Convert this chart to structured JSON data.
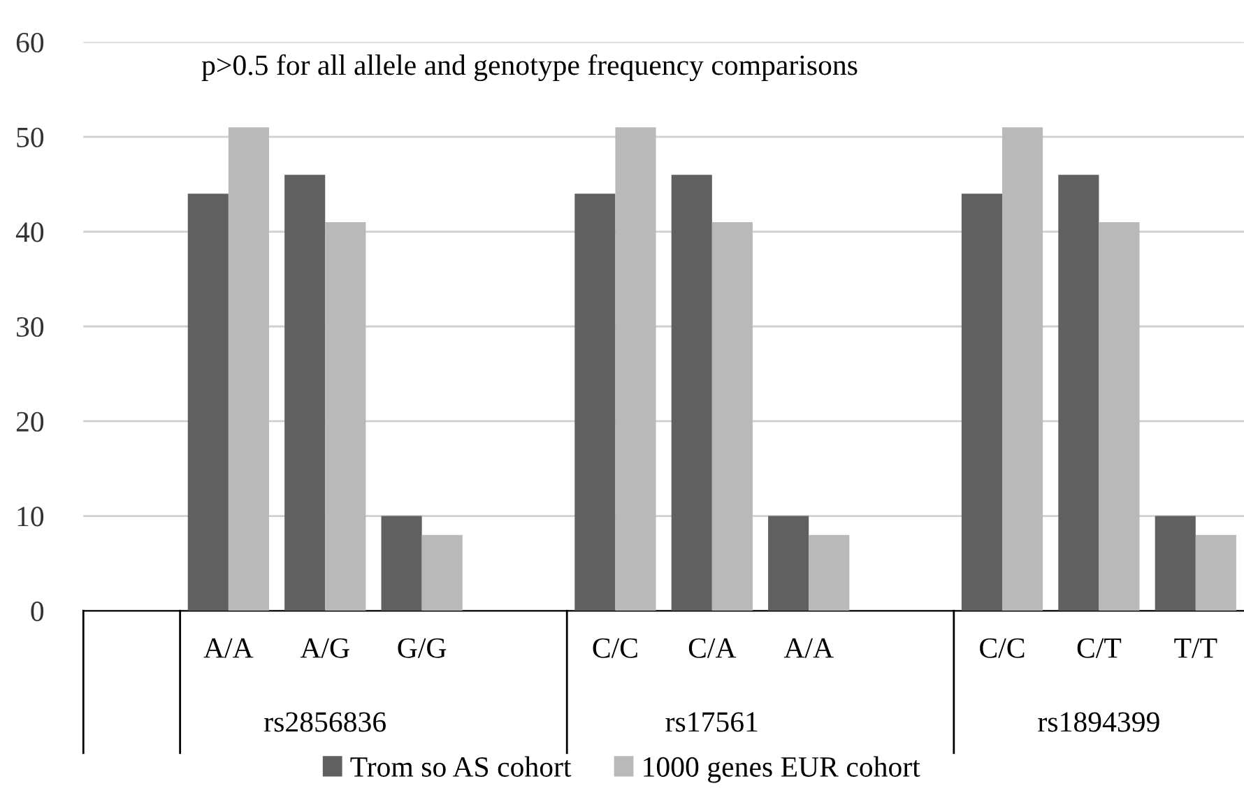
{
  "chart_data": {
    "type": "bar",
    "categories": [
      null,
      "A/A",
      "A/G",
      "G/G",
      null,
      "C/C",
      "C/A",
      "A/A",
      null,
      "C/C",
      "C/T",
      "T/T"
    ],
    "series": [
      {
        "name": "Trom so AS cohort",
        "color": "#606060",
        "values": [
          null,
          44,
          46,
          10,
          null,
          44,
          46,
          10,
          null,
          44,
          46,
          10
        ]
      },
      {
        "name": "1000 genes EUR cohort",
        "color": "#b9b9b9",
        "values": [
          null,
          51,
          41,
          8,
          null,
          51,
          41,
          8,
          null,
          51,
          41,
          8
        ]
      }
    ],
    "annotations": [
      "p>0.5 for all allele and genotype frequency comparisons",
      "rs2856836",
      "rs17561",
      "rs1894399"
    ],
    "ylim": [
      0,
      60
    ],
    "yticks": [
      0,
      10,
      20,
      30,
      40,
      50,
      60
    ],
    "grid": "y",
    "legend": "bottom"
  }
}
